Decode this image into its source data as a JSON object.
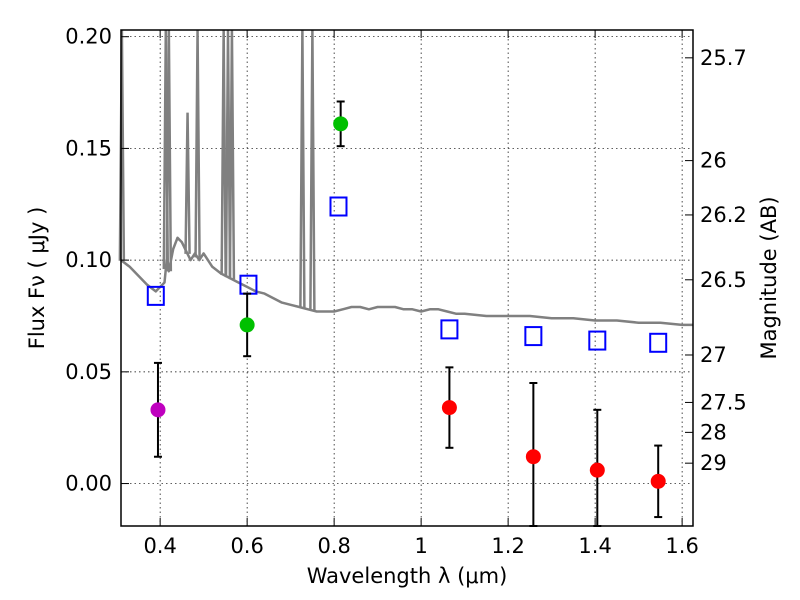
{
  "chart_data": {
    "type": "scatter",
    "xlabel": "Wavelength  λ (μm)",
    "ylabel": "Flux  Fν  ( μJy )",
    "ylabel_right": "Magnitude (AB)",
    "xlim": [
      0.31,
      1.625
    ],
    "ylim": [
      -0.019,
      0.203
    ],
    "x_ticks": [
      0.4,
      0.6,
      0.8,
      1.0,
      1.2,
      1.4,
      1.6
    ],
    "x_tick_labels": [
      "0.4",
      "0.6",
      "0.8",
      "1",
      "1.2",
      "1.4",
      "1.6"
    ],
    "y_ticks": [
      0.0,
      0.05,
      0.1,
      0.15,
      0.2
    ],
    "y_tick_labels": [
      "0.00",
      "0.05",
      "0.10",
      "0.15",
      "0.20"
    ],
    "mag_ticks": [
      "25.7",
      "26",
      "26.2",
      "26.5",
      "27",
      "27.5",
      "28",
      "29"
    ],
    "grid": true,
    "colors": {
      "template": "#808080",
      "model": "#0000ff",
      "magenta": "#bf00bf",
      "green": "#00c000",
      "red": "#ff0000",
      "errorbar": "#000000"
    },
    "template_spectrum": {
      "x": [
        0.31,
        0.33,
        0.35,
        0.37,
        0.39,
        0.41,
        0.415,
        0.42,
        0.43,
        0.44,
        0.45,
        0.46,
        0.47,
        0.48,
        0.49,
        0.5,
        0.52,
        0.54,
        0.56,
        0.58,
        0.6,
        0.62,
        0.64,
        0.66,
        0.68,
        0.7,
        0.72,
        0.74,
        0.76,
        0.78,
        0.8,
        0.82,
        0.84,
        0.86,
        0.88,
        0.9,
        0.92,
        0.94,
        0.96,
        0.98,
        1.0,
        1.02,
        1.04,
        1.06,
        1.08,
        1.1,
        1.15,
        1.2,
        1.25,
        1.3,
        1.35,
        1.4,
        1.45,
        1.5,
        1.55,
        1.6,
        1.625
      ],
      "y": [
        0.1,
        0.097,
        0.093,
        0.089,
        0.086,
        0.09,
        0.1,
        0.095,
        0.105,
        0.11,
        0.108,
        0.104,
        0.1,
        0.103,
        0.1,
        0.103,
        0.097,
        0.094,
        0.092,
        0.09,
        0.088,
        0.086,
        0.085,
        0.083,
        0.081,
        0.08,
        0.079,
        0.078,
        0.077,
        0.077,
        0.077,
        0.078,
        0.079,
        0.079,
        0.078,
        0.079,
        0.079,
        0.079,
        0.078,
        0.078,
        0.077,
        0.078,
        0.078,
        0.077,
        0.076,
        0.076,
        0.075,
        0.075,
        0.075,
        0.074,
        0.074,
        0.073,
        0.073,
        0.072,
        0.072,
        0.071,
        0.071
      ],
      "emission_lines": [
        {
          "x": 0.312,
          "peak": 0.203
        },
        {
          "x": 0.413,
          "peak": 0.203
        },
        {
          "x": 0.42,
          "peak": 0.203
        },
        {
          "x": 0.486,
          "peak": 0.203
        },
        {
          "x": 0.546,
          "peak": 0.203
        },
        {
          "x": 0.556,
          "peak": 0.203
        },
        {
          "x": 0.565,
          "peak": 0.203
        },
        {
          "x": 0.727,
          "peak": 0.203
        },
        {
          "x": 0.75,
          "peak": 0.203
        },
        {
          "x": 0.463,
          "peak": 0.166
        }
      ]
    },
    "series": [
      {
        "marker": "open-square",
        "color": "#0000ff",
        "x": [
          0.39,
          0.603,
          0.81,
          1.065,
          1.258,
          1.405,
          1.545
        ],
        "y": [
          0.084,
          0.089,
          0.124,
          0.069,
          0.066,
          0.064,
          0.063
        ]
      },
      {
        "marker": "circle",
        "color": "#bf00bf",
        "x": [
          0.395
        ],
        "y": [
          0.033
        ],
        "yerr": [
          0.021
        ]
      },
      {
        "marker": "circle",
        "color": "#00c000",
        "x": [
          0.6,
          0.815
        ],
        "y": [
          0.071,
          0.161
        ],
        "yerr": [
          0.014,
          0.01
        ]
      },
      {
        "marker": "circle",
        "color": "#ff0000",
        "x": [
          1.065,
          1.258,
          1.405,
          1.545
        ],
        "y": [
          0.034,
          0.012,
          0.006,
          0.001
        ],
        "yerr": [
          0.018,
          0.033,
          0.027,
          0.016
        ]
      }
    ]
  }
}
